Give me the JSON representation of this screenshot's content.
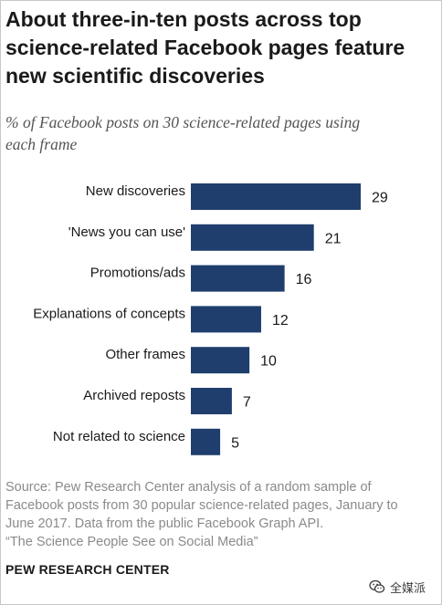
{
  "title_lines": [
    "About three-in-ten posts across top",
    "science-related Facebook pages feature",
    "new scientific discoveries"
  ],
  "subtitle_lines": [
    "% of Facebook posts on 30 science-related pages using",
    "each frame"
  ],
  "chart_data": {
    "type": "bar",
    "orientation": "horizontal",
    "categories": [
      "New discoveries",
      "'News you can use'",
      "Promotions/ads",
      "Explanations of concepts",
      "Other frames",
      "Archived reposts",
      "Not related to science"
    ],
    "values": [
      29,
      21,
      16,
      12,
      10,
      7,
      5
    ],
    "data_labels": [
      "29",
      "21",
      "16",
      "12",
      "10",
      "7",
      "5"
    ],
    "title": "About three-in-ten posts across top science-related Facebook pages feature new scientific discoveries",
    "subtitle": "% of Facebook posts on 30 science-related pages using each frame",
    "xlim": [
      0,
      29
    ],
    "bar_color": "#1f3e6e",
    "grid": false,
    "legend": "none"
  },
  "source_lines": [
    "Source: Pew Research Center analysis of a random sample of",
    "Facebook posts from 30 popular science-related pages, January to",
    "June 2017. Data from the public Facebook Graph API.",
    "“The Science People See on Social Media”"
  ],
  "org_name": "PEW RESEARCH CENTER",
  "watermark": {
    "text": "全媒派",
    "icon": "wechat-icon"
  }
}
